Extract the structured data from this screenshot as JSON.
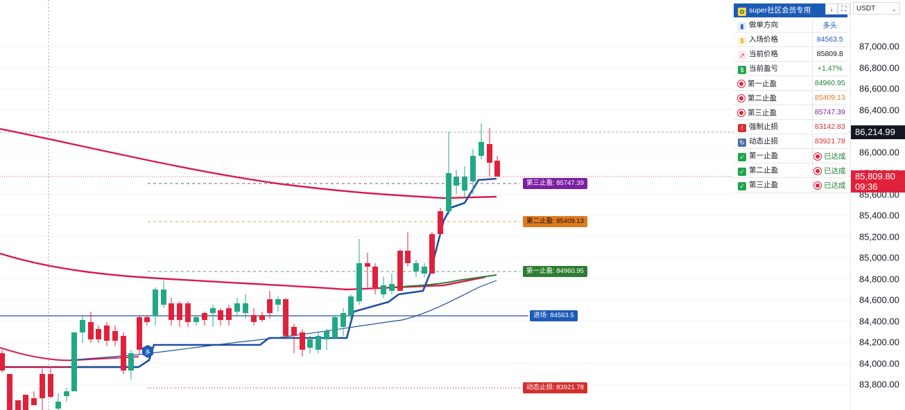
{
  "currency": {
    "label": "USDT"
  },
  "axis_ticks": [
    "87,000.00",
    "86,800.00",
    "86,600.00",
    "86,400.00",
    "86,200.00",
    "86,000.00",
    "85,800.00",
    "85,600.00",
    "85,400.00",
    "85,200.00",
    "85,000.00",
    "84,800.00",
    "84,600.00",
    "84,400.00",
    "84,200.00",
    "84,000.00",
    "83,800.00"
  ],
  "price_tags": {
    "high": "86,214.99",
    "last": "85,809.80",
    "countdown": "09:36"
  },
  "panel": {
    "title": "super社区会员专用",
    "buttons": {
      "down": "↓",
      "expand": "⛶"
    },
    "rows": [
      {
        "label": "做单方向",
        "value": "多头",
        "color": "#1c5bb5"
      },
      {
        "label": "入场价格",
        "value": "84563.5",
        "color": "#1c5bb5"
      },
      {
        "label": "当前价格",
        "value": "85809.8",
        "color": "#131722"
      },
      {
        "label": "当前盈亏",
        "value": "+1.47%",
        "color": "#1e7d32"
      },
      {
        "label": "第一止盈",
        "value": "84960.95",
        "color": "#1e7d32"
      },
      {
        "label": "第二止盈",
        "value": "85409.13",
        "color": "#e07a1f"
      },
      {
        "label": "第三止盈",
        "value": "85747.39",
        "color": "#7b1fa2"
      },
      {
        "label": "强制止损",
        "value": "83142.83",
        "color": "#d32f2f"
      },
      {
        "label": "动态止损",
        "value": "83921.78",
        "color": "#d32f2f"
      },
      {
        "label": "第一止盈",
        "value": "已达成",
        "color": "#1e7d32"
      },
      {
        "label": "第二止盈",
        "value": "已达成",
        "color": "#1e7d32"
      },
      {
        "label": "第三止盈",
        "value": "已达成",
        "color": "#1e7d32"
      }
    ]
  },
  "line_labels": {
    "tp3": "第三止盈: 85747.39",
    "tp2": "第二止盈: 85409.13",
    "tp1": "第一止盈: 84960.95",
    "entry": "进场: 84563.5",
    "dynamic_stop": "动态止损: 83921.78"
  },
  "marker": {
    "label": "多"
  },
  "colors": {
    "up": "#22a884",
    "down": "#e0213c",
    "stop_blue": "#1c4fa0",
    "ma_red": "#d81b4e",
    "ma_green": "#2e7d32"
  }
}
